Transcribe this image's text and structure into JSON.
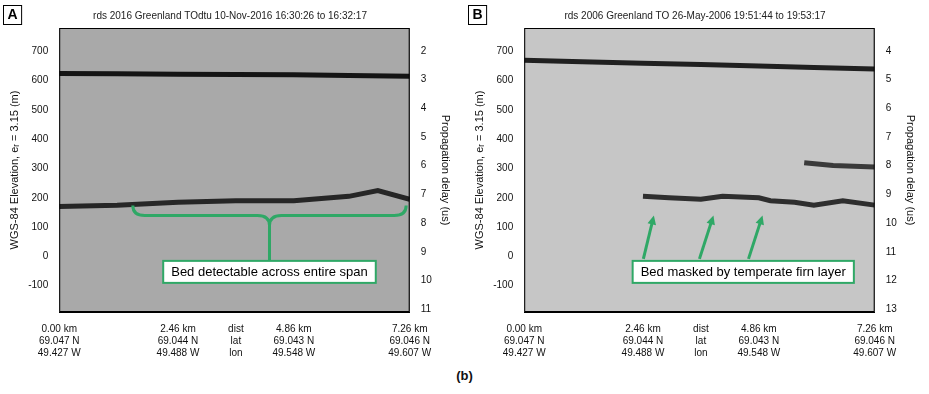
{
  "caption": "(b)",
  "chart_data": [
    {
      "type": "line",
      "panel": "A",
      "title": "rds 2016 Greenland TOdtu 10-Nov-2016 16:30:26 to 16:32:17",
      "y_label": "WGS-84 Elevation, eᵣ = 3.15 (m)",
      "y2_label": "Propagation delay (us)",
      "xlim": [
        0,
        7.26
      ],
      "xticks": [
        {
          "value": 0,
          "label": [
            "0.00 km",
            "69.047 N",
            "49.427 W"
          ]
        },
        {
          "value": 2.46,
          "label": [
            "2.46 km",
            "69.044 N",
            "49.488 W"
          ]
        },
        {
          "value": 4.86,
          "label": [
            "4.86 km",
            "69.043 N",
            "49.548 W"
          ]
        },
        {
          "value": 7.26,
          "label": [
            "7.26 km",
            "69.046 N",
            "49.607 W"
          ]
        }
      ],
      "x_row_labels": [
        "dist",
        "lat",
        "lon"
      ],
      "ylim": [
        -190,
        780
      ],
      "yticks": [
        -100,
        0,
        100,
        200,
        300,
        400,
        500,
        600,
        700
      ],
      "y2lim": [
        1.2,
        11.1
      ],
      "y2ticks": [
        2,
        3,
        4,
        5,
        6,
        7,
        8,
        9,
        10,
        11
      ],
      "grid": false,
      "annotation": "Bed detectable across entire span",
      "series": [
        {
          "color": "#151515",
          "x": [
            0,
            1.2,
            2.46,
            3.66,
            4.86,
            6.0,
            7.26
          ],
          "values": [
            625,
            624,
            622,
            621,
            620,
            618,
            615
          ]
        },
        {
          "color": "#262626",
          "x": [
            0,
            1.2,
            2.46,
            3.66,
            4.86,
            6.0,
            6.6,
            7.26
          ],
          "values": [
            170,
            175,
            185,
            190,
            190,
            205,
            225,
            195
          ]
        }
      ]
    },
    {
      "type": "line",
      "panel": "B",
      "title": "rds 2006 Greenland TO 26-May-2006 19:51:44 to 19:53:17",
      "y_label": "WGS-84 Elevation, eᵣ = 3.15 (m)",
      "y2_label": "Propagation delay (us)",
      "xlim": [
        0,
        7.26
      ],
      "xticks": [
        {
          "value": 0,
          "label": [
            "0.00 km",
            "69.047 N",
            "49.427 W"
          ]
        },
        {
          "value": 2.46,
          "label": [
            "2.46 km",
            "69.044 N",
            "49.488 W"
          ]
        },
        {
          "value": 4.86,
          "label": [
            "4.86 km",
            "69.043 N",
            "49.548 W"
          ]
        },
        {
          "value": 7.26,
          "label": [
            "7.26 km",
            "69.046 N",
            "49.607 W"
          ]
        }
      ],
      "x_row_labels": [
        "dist",
        "lat",
        "lon"
      ],
      "ylim": [
        -190,
        780
      ],
      "yticks": [
        -100,
        0,
        100,
        200,
        300,
        400,
        500,
        600,
        700
      ],
      "y2lim": [
        3.2,
        13.1
      ],
      "y2ticks": [
        4,
        5,
        6,
        7,
        8,
        9,
        10,
        11,
        12,
        13
      ],
      "grid": false,
      "annotation": "Bed masked by temperate firn layer",
      "series": [
        {
          "color": "#202020",
          "x": [
            0,
            1.2,
            2.46,
            3.66,
            4.86,
            6.0,
            7.26
          ],
          "values": [
            670,
            665,
            660,
            655,
            650,
            645,
            640
          ]
        },
        {
          "color": "#2e2e2e",
          "x": [
            0,
            1.2,
            2.46,
            3.0,
            3.66,
            4.11,
            4.86,
            5.1,
            5.6,
            6.0,
            6.6,
            7.26
          ],
          "values": [
            null,
            null,
            205,
            200,
            195,
            205,
            200,
            190,
            185,
            175,
            190,
            175
          ]
        },
        {
          "color": "#3a3a3a",
          "x": [
            5.8,
            6.4,
            7.26
          ],
          "values": [
            320,
            310,
            305
          ]
        }
      ]
    }
  ]
}
